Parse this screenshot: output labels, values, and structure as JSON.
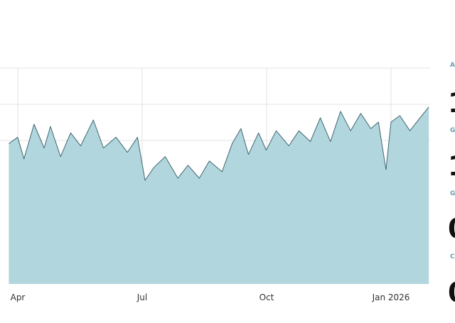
{
  "chart_data": {
    "type": "area",
    "x_ticks": [
      "Apr",
      "Jul",
      "Oct",
      "Jan 2026"
    ],
    "grid": true,
    "colors": {
      "fill": "#b2d6de",
      "line": "#3f666e",
      "grid": "#e3e3e3"
    },
    "series": [
      {
        "points": [
          [
            "2025-03-08",
            0.65
          ],
          [
            "2025-03-15",
            0.68
          ],
          [
            "2025-03-20",
            0.58
          ],
          [
            "2025-03-28",
            0.74
          ],
          [
            "2025-04-05",
            0.63
          ],
          [
            "2025-04-10",
            0.73
          ],
          [
            "2025-04-18",
            0.59
          ],
          [
            "2025-04-26",
            0.7
          ],
          [
            "2025-05-04",
            0.64
          ],
          [
            "2025-05-14",
            0.76
          ],
          [
            "2025-05-22",
            0.63
          ],
          [
            "2025-06-01",
            0.68
          ],
          [
            "2025-06-10",
            0.61
          ],
          [
            "2025-06-18",
            0.68
          ],
          [
            "2025-06-24",
            0.48
          ],
          [
            "2025-07-01",
            0.54
          ],
          [
            "2025-07-10",
            0.59
          ],
          [
            "2025-07-20",
            0.49
          ],
          [
            "2025-07-28",
            0.55
          ],
          [
            "2025-08-06",
            0.49
          ],
          [
            "2025-08-14",
            0.57
          ],
          [
            "2025-08-24",
            0.52
          ],
          [
            "2025-09-01",
            0.65
          ],
          [
            "2025-09-08",
            0.72
          ],
          [
            "2025-09-14",
            0.6
          ],
          [
            "2025-09-22",
            0.7
          ],
          [
            "2025-09-28",
            0.62
          ],
          [
            "2025-10-06",
            0.71
          ],
          [
            "2025-10-16",
            0.64
          ],
          [
            "2025-10-24",
            0.71
          ],
          [
            "2025-11-02",
            0.66
          ],
          [
            "2025-11-10",
            0.77
          ],
          [
            "2025-11-18",
            0.66
          ],
          [
            "2025-11-26",
            0.8
          ],
          [
            "2025-12-04",
            0.71
          ],
          [
            "2025-12-12",
            0.79
          ],
          [
            "2025-12-20",
            0.72
          ],
          [
            "2025-12-26",
            0.75
          ],
          [
            "2026-01-01",
            0.53
          ],
          [
            "2026-01-05",
            0.75
          ],
          [
            "2026-01-12",
            0.78
          ],
          [
            "2026-01-20",
            0.71
          ],
          [
            "2026-01-28",
            0.77
          ],
          [
            "2026-02-04",
            0.82
          ]
        ]
      }
    ]
  },
  "side_panel": {
    "stats": [
      {
        "label": "A",
        "value": "1"
      },
      {
        "label": "G",
        "value": "1"
      },
      {
        "label": "G",
        "value": "0"
      },
      {
        "label": "C",
        "value": "0"
      }
    ]
  }
}
